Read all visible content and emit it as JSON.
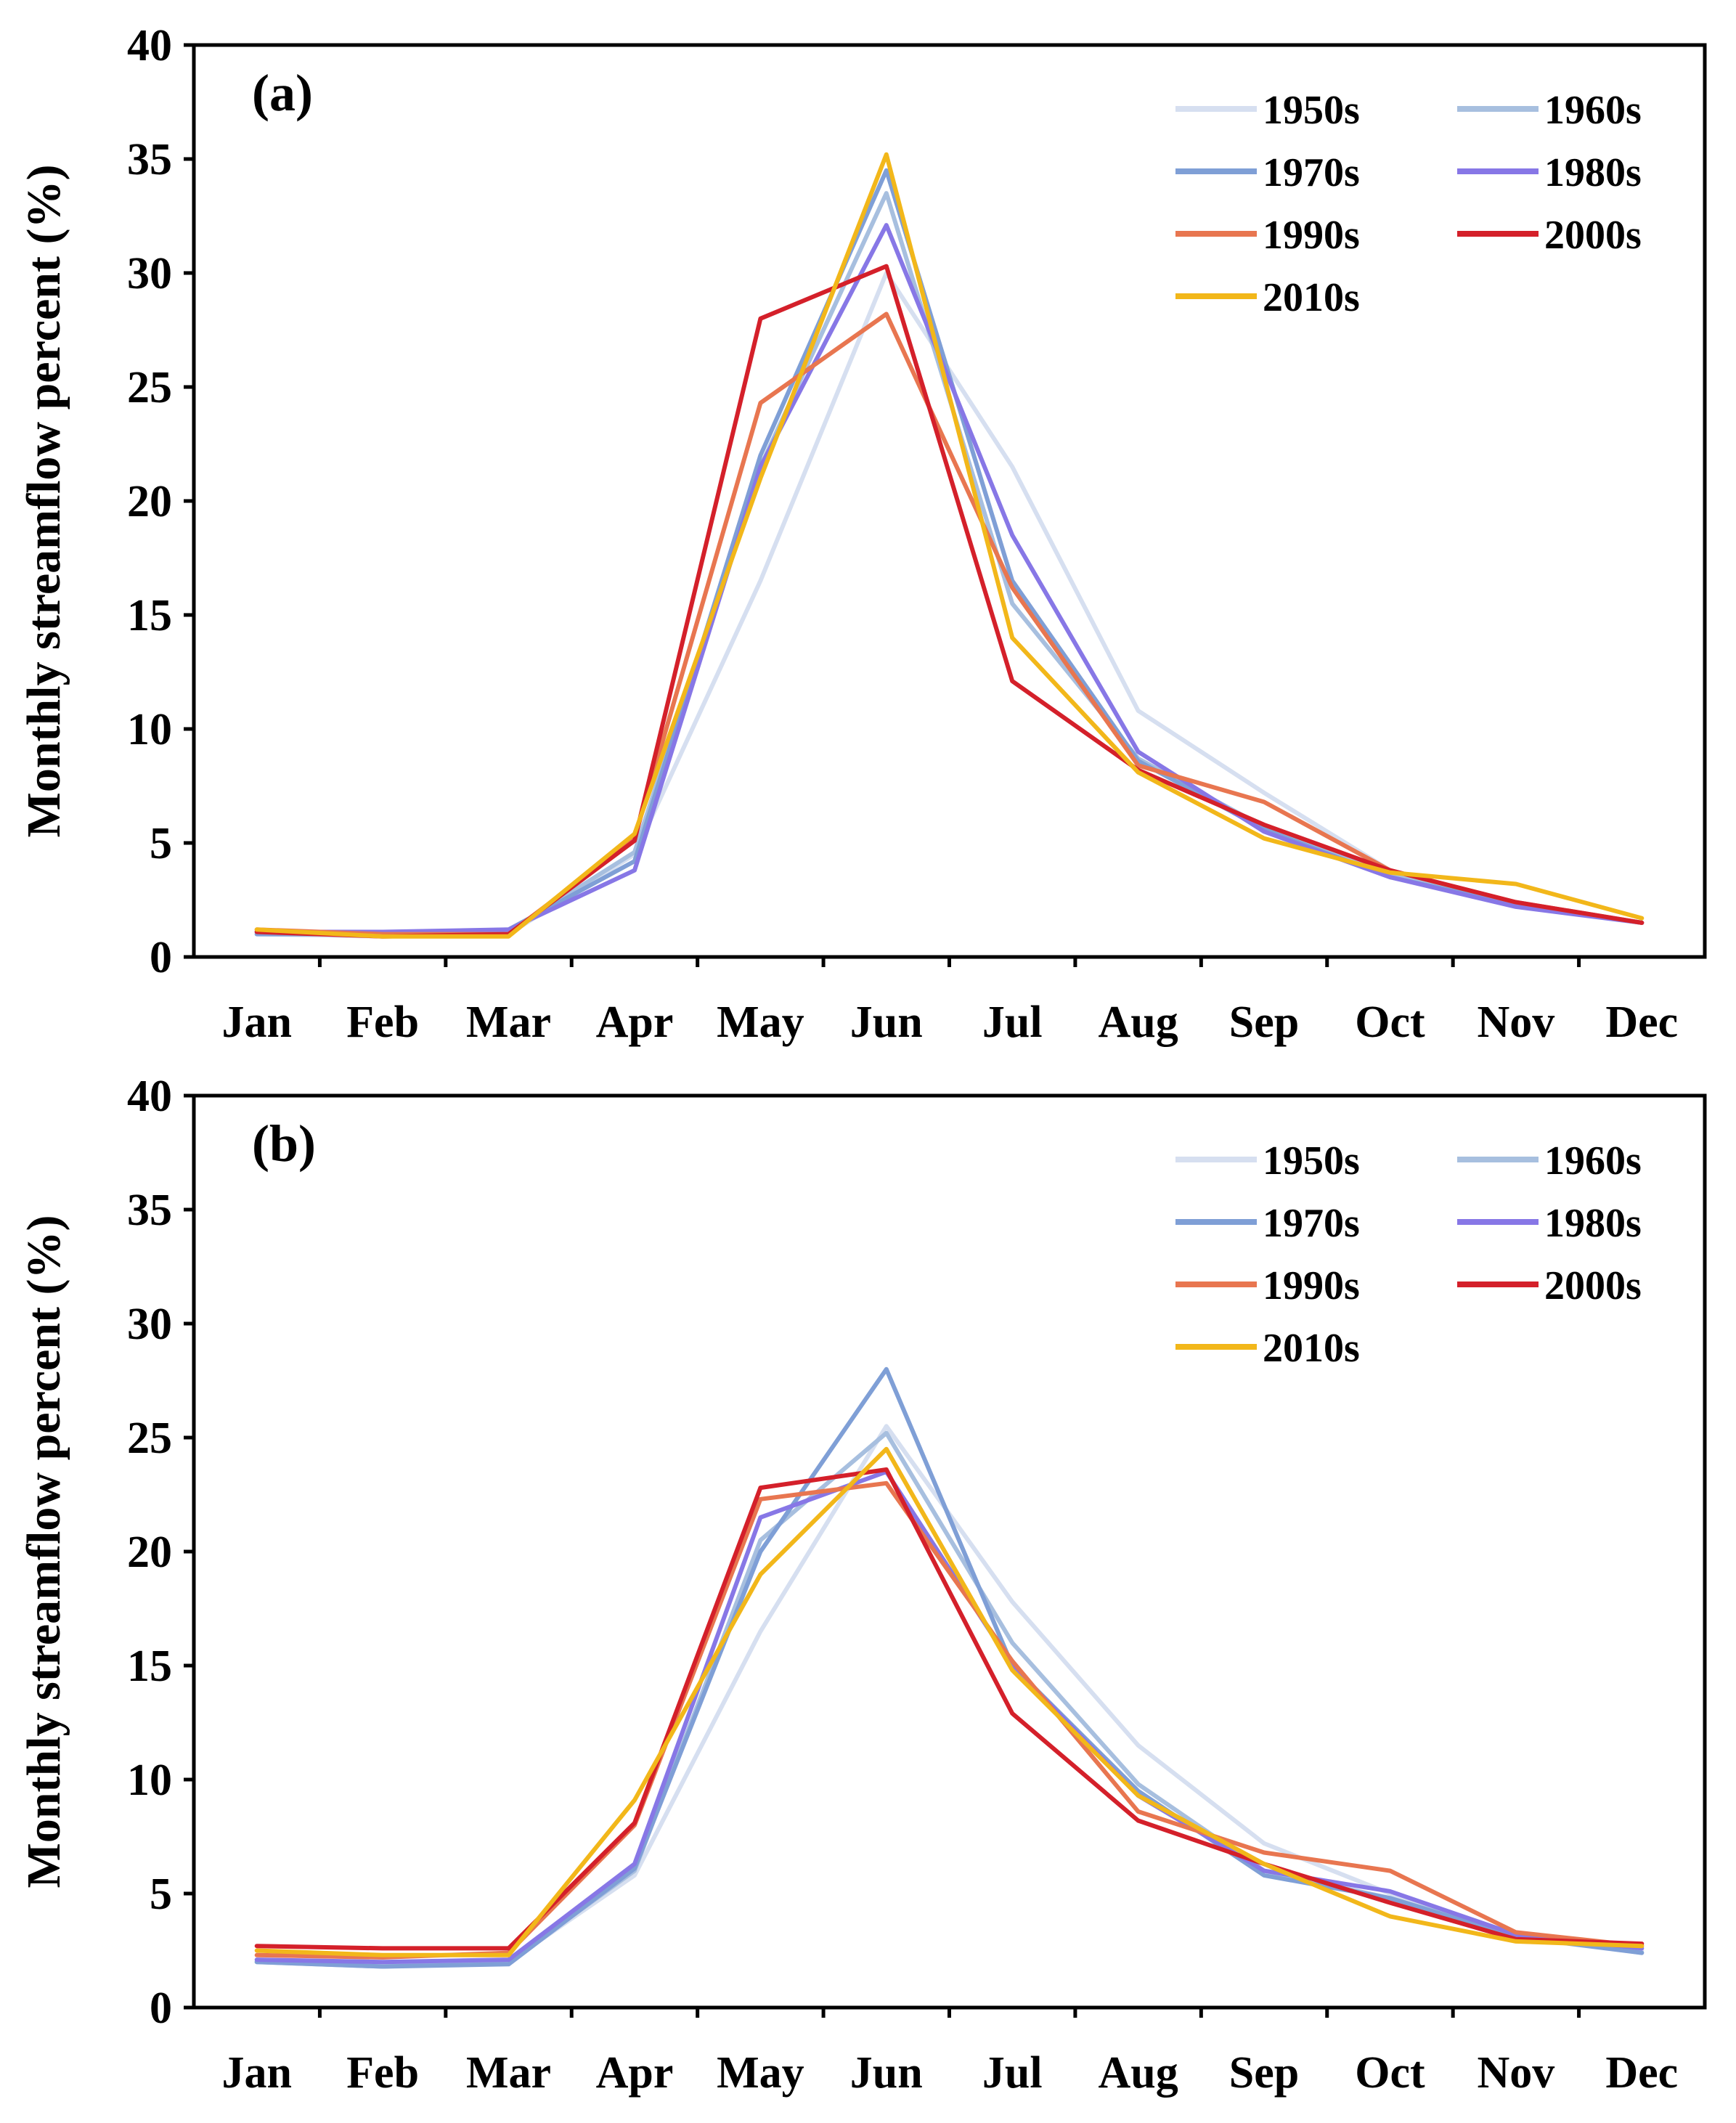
{
  "chart_data": [
    {
      "type": "line",
      "panel_label": "(a)",
      "ylabel": "Monthly streamflow percent (%)",
      "xlabel": "",
      "ylim": [
        0,
        40
      ],
      "yticks": [
        "0",
        "5",
        "10",
        "15",
        "20",
        "25",
        "30",
        "35",
        "40"
      ],
      "categories": [
        "Jan",
        "Feb",
        "Mar",
        "Apr",
        "May",
        "Jun",
        "Jul",
        "Aug",
        "Sep",
        "Oct",
        "Nov",
        "Dec"
      ],
      "legend_position": "top-right",
      "series": [
        {
          "name": "1950s",
          "color": "#d6dff0",
          "values": [
            1.0,
            0.9,
            1.0,
            4.5,
            16.5,
            30.0,
            21.5,
            10.8,
            7.2,
            3.8,
            2.3,
            1.5
          ]
        },
        {
          "name": "1960s",
          "color": "#a7bfdf",
          "values": [
            1.1,
            1.0,
            1.1,
            4.6,
            21.5,
            33.5,
            15.5,
            8.7,
            5.7,
            3.6,
            2.3,
            1.5
          ]
        },
        {
          "name": "1970s",
          "color": "#7f9fd6",
          "values": [
            1.0,
            1.0,
            1.2,
            4.2,
            22.0,
            34.5,
            16.5,
            8.6,
            5.6,
            3.5,
            2.3,
            1.5
          ]
        },
        {
          "name": "1980s",
          "color": "#8777e6",
          "values": [
            1.1,
            1.1,
            1.2,
            3.8,
            21.5,
            32.1,
            18.5,
            9.0,
            5.5,
            3.5,
            2.2,
            1.5
          ]
        },
        {
          "name": "1990s",
          "color": "#e87650",
          "values": [
            1.2,
            1.0,
            1.0,
            5.2,
            24.3,
            28.2,
            16.2,
            8.4,
            6.8,
            3.8,
            2.4,
            1.5
          ]
        },
        {
          "name": "2000s",
          "color": "#d4202a",
          "values": [
            1.1,
            0.9,
            1.0,
            5.1,
            28.0,
            30.3,
            12.1,
            8.2,
            5.8,
            3.8,
            2.4,
            1.5
          ]
        },
        {
          "name": "2010s",
          "color": "#f2b71a",
          "values": [
            1.2,
            0.9,
            0.9,
            5.4,
            21.0,
            35.2,
            14.0,
            8.1,
            5.2,
            3.7,
            3.2,
            1.7
          ]
        }
      ]
    },
    {
      "type": "line",
      "panel_label": "(b)",
      "ylabel": "Monthly streamflow percent (%)",
      "xlabel": "",
      "ylim": [
        0,
        40
      ],
      "yticks": [
        "0",
        "5",
        "10",
        "15",
        "20",
        "25",
        "30",
        "35",
        "40"
      ],
      "categories": [
        "Jan",
        "Feb",
        "Mar",
        "Apr",
        "May",
        "Jun",
        "Jul",
        "Aug",
        "Sep",
        "Oct",
        "Nov",
        "Dec"
      ],
      "legend_position": "top-right",
      "series": [
        {
          "name": "1950s",
          "color": "#d6dff0",
          "values": [
            2.0,
            1.9,
            2.0,
            5.8,
            16.5,
            25.5,
            17.8,
            11.5,
            7.2,
            5.0,
            3.2,
            2.5
          ]
        },
        {
          "name": "1960s",
          "color": "#a7bfdf",
          "values": [
            2.0,
            1.8,
            2.0,
            6.0,
            20.5,
            25.2,
            16.0,
            9.8,
            6.0,
            4.8,
            3.2,
            2.4
          ]
        },
        {
          "name": "1970s",
          "color": "#7f9fd6",
          "values": [
            2.0,
            1.8,
            1.9,
            6.1,
            20.0,
            28.0,
            15.0,
            9.5,
            5.8,
            4.8,
            3.1,
            2.4
          ]
        },
        {
          "name": "1980s",
          "color": "#8777e6",
          "values": [
            2.1,
            2.0,
            2.1,
            6.3,
            21.5,
            23.5,
            15.0,
            9.3,
            6.0,
            5.1,
            3.2,
            2.6
          ]
        },
        {
          "name": "1990s",
          "color": "#e87650",
          "values": [
            2.3,
            2.2,
            2.4,
            8.0,
            22.3,
            23.0,
            15.2,
            8.6,
            6.8,
            6.0,
            3.3,
            2.7
          ]
        },
        {
          "name": "2000s",
          "color": "#d4202a",
          "values": [
            2.7,
            2.6,
            2.6,
            8.1,
            22.8,
            23.6,
            12.9,
            8.2,
            6.3,
            4.6,
            3.0,
            2.8
          ]
        },
        {
          "name": "2010s",
          "color": "#f2b71a",
          "values": [
            2.5,
            2.3,
            2.3,
            9.1,
            19.0,
            24.5,
            14.8,
            9.3,
            6.3,
            4.0,
            2.9,
            2.7
          ]
        }
      ]
    }
  ]
}
